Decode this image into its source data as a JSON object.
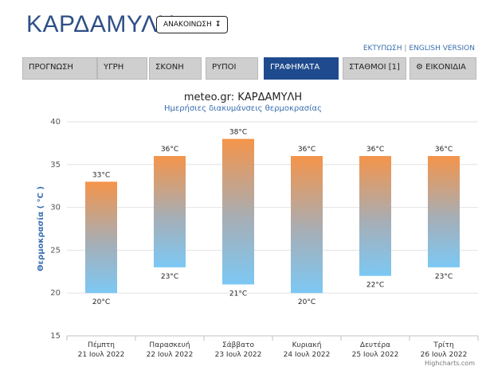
{
  "header": {
    "title": "ΚΑΡΔΑΜΥΛΗ",
    "announce_label": "ΑΝΑΚΟΙΝΩΣΗ",
    "announce_icon": "arrow-down-icon",
    "print_link": "ΕΚΤΥΠΩΣΗ",
    "separator": "|",
    "english_link": "ENGLISH VERSION"
  },
  "nav": {
    "tabs": [
      {
        "label": "ΠΡΟΓΝΩΣΗ",
        "active": false
      },
      {
        "label": "ΥΓΡΗ",
        "active": false
      },
      {
        "label": "ΣΚΟΝΗ",
        "active": false
      },
      {
        "label": "ΡΥΠΟΙ",
        "active": false
      },
      {
        "label": "ΓΡΑΦΗΜΑΤΑ",
        "active": true
      },
      {
        "label": "ΣΤΑΘΜΟΙ [1]",
        "active": false
      },
      {
        "label": "⚙ ΕΙΚΟΝΙΔΙΑ",
        "active": false,
        "icon": "gear-icon"
      }
    ]
  },
  "credit": "Highcharts.com",
  "chart_data": {
    "type": "bar",
    "title": "meteo.gr: ΚΑΡΔΑΜΥΛΗ",
    "subtitle": "Ημερήσιες διακυμάνσεις θερμοκρασίας",
    "ylabel": "Θερμοκρασία ( °C )",
    "ylim": [
      15,
      40
    ],
    "yticks": [
      15,
      20,
      25,
      30,
      35,
      40
    ],
    "grid": true,
    "categories": [
      [
        "Πέμπτη",
        "21 Ιουλ 2022"
      ],
      [
        "Παρασκευή",
        "22 Ιουλ 2022"
      ],
      [
        "Σάββατο",
        "23 Ιουλ 2022"
      ],
      [
        "Κυριακή",
        "24 Ιουλ 2022"
      ],
      [
        "Δευτέρα",
        "25 Ιουλ 2022"
      ],
      [
        "Τρίτη",
        "26 Ιουλ 2022"
      ]
    ],
    "low": [
      20,
      23,
      21,
      20,
      22,
      23
    ],
    "high": [
      33,
      36,
      38,
      36,
      36,
      36
    ],
    "unit": "°C",
    "colors": {
      "high": "#f4944a",
      "low": "#7cc8f4"
    }
  }
}
